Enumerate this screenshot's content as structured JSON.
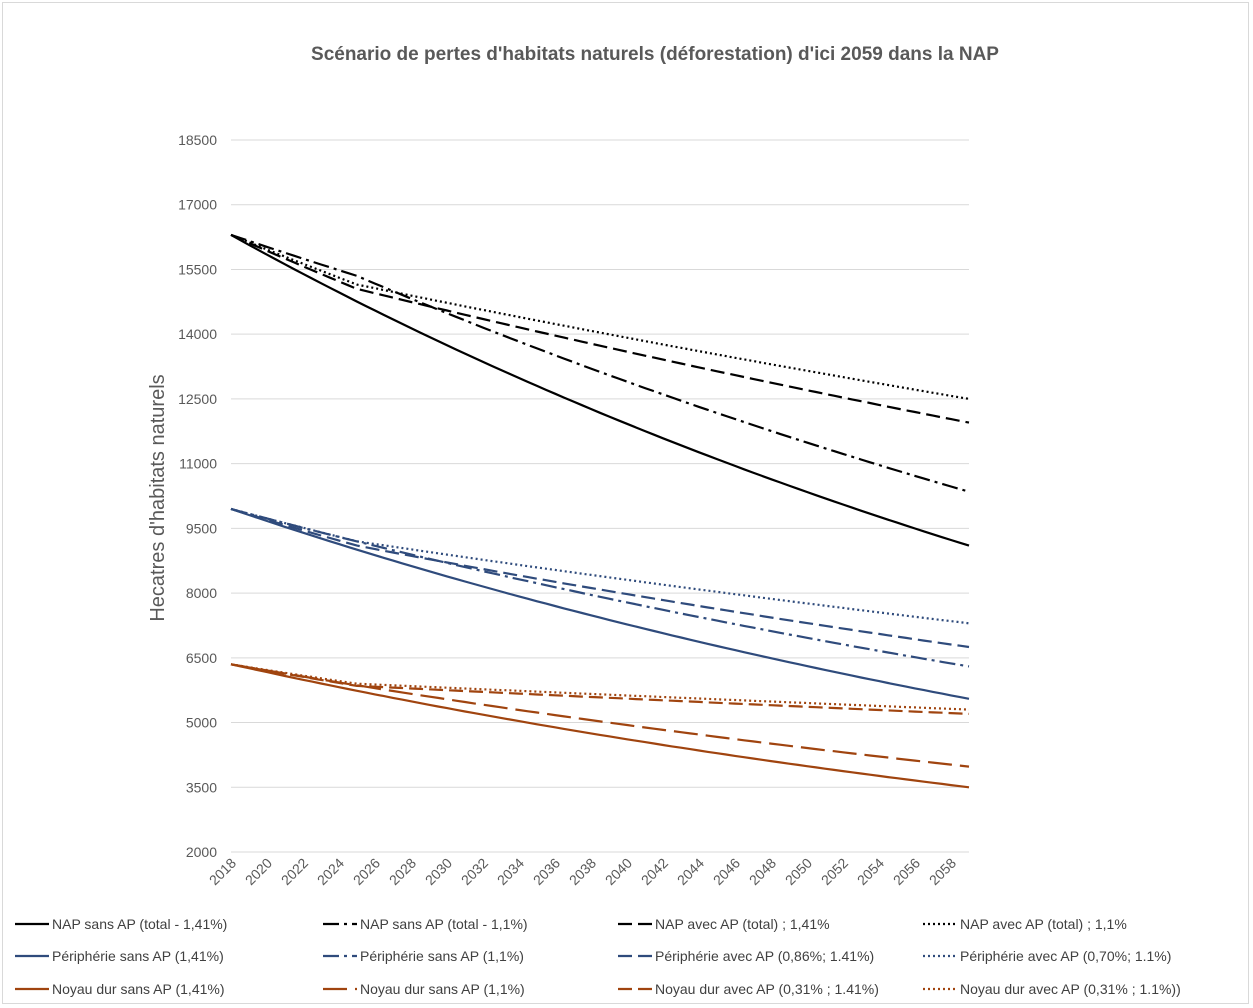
{
  "chart_data": {
    "type": "line",
    "title": "Scénario de pertes d'habitats naturels (déforestation) d'ici 2059 dans la NAP",
    "xlabel": "",
    "ylabel": "Hecatres d'habitats naturels",
    "ylim": [
      2000,
      18500
    ],
    "yticks": [
      "2000",
      "3500",
      "5000",
      "6500",
      "8000",
      "9500",
      "11000",
      "12500",
      "14000",
      "15500",
      "17000",
      "18500"
    ],
    "xlim": [
      2018,
      2059
    ],
    "xticks": [
      "2018",
      "2020",
      "2022",
      "2024",
      "2026",
      "2028",
      "2030",
      "2032",
      "2034",
      "2036",
      "2038",
      "2040",
      "2042",
      "2044",
      "2046",
      "2048",
      "2050",
      "2052",
      "2054",
      "2056",
      "2058"
    ],
    "grid": true,
    "legend_position": "bottom",
    "colors": {
      "black": "#000000",
      "blue": "#2f4b7c",
      "brown": "#a0440f"
    },
    "series": [
      {
        "name": "NAP sans AP (total - 1,41%)",
        "color": "#000000",
        "style": "solid",
        "x": [
          2018,
          2059
        ],
        "y": [
          16300,
          9100
        ],
        "form": "exp"
      },
      {
        "name": "NAP sans AP (total - 1,1%)",
        "color": "#000000",
        "style": "dashdot",
        "x": [
          2018,
          2025,
          2059
        ],
        "y": [
          16300,
          15350,
          10350
        ],
        "form": "exp"
      },
      {
        "name": "NAP avec AP (total) ; 1,41%",
        "color": "#000000",
        "style": "dashed",
        "x": [
          2018,
          2025,
          2059
        ],
        "y": [
          16300,
          15050,
          11950
        ],
        "form": "exp"
      },
      {
        "name": "NAP avec AP (total) ; 1,1%",
        "color": "#000000",
        "style": "dotted",
        "x": [
          2018,
          2025,
          2059
        ],
        "y": [
          16300,
          15150,
          12500
        ],
        "form": "exp"
      },
      {
        "name": "Périphérie sans AP (1,41%)",
        "color": "#2f4b7c",
        "style": "solid",
        "x": [
          2018,
          2059
        ],
        "y": [
          9950,
          5550
        ],
        "form": "exp"
      },
      {
        "name": "Périphérie sans AP (1,1%)",
        "color": "#2f4b7c",
        "style": "dashdot",
        "x": [
          2018,
          2024,
          2059
        ],
        "y": [
          9950,
          9300,
          6300
        ],
        "form": "exp"
      },
      {
        "name": "Périphérie avec AP (0,86%; 1.41%)",
        "color": "#2f4b7c",
        "style": "dashed",
        "x": [
          2018,
          2025,
          2059
        ],
        "y": [
          9950,
          9100,
          6750
        ],
        "form": "exp"
      },
      {
        "name": "Périphérie avec AP (0,70%; 1.1%)",
        "color": "#2f4b7c",
        "style": "dotted",
        "x": [
          2018,
          2025,
          2059
        ],
        "y": [
          9950,
          9200,
          7300
        ],
        "form": "exp"
      },
      {
        "name": "Noyau dur sans AP (1,41%)",
        "color": "#a0440f",
        "style": "solid",
        "x": [
          2018,
          2059
        ],
        "y": [
          6350,
          3500
        ],
        "form": "exp"
      },
      {
        "name": "Noyau dur sans AP (1,1%)",
        "color": "#a0440f",
        "style": "longdash",
        "x": [
          2018,
          2059
        ],
        "y": [
          6350,
          3980
        ],
        "form": "exp"
      },
      {
        "name": "Noyau dur avec AP (0,31% ; 1.41%)",
        "color": "#a0440f",
        "style": "dashed",
        "x": [
          2018,
          2025,
          2059
        ],
        "y": [
          6350,
          5850,
          5200
        ],
        "form": "exp"
      },
      {
        "name": "Noyau dur avec AP (0,31% ; 1.1%))",
        "color": "#a0440f",
        "style": "dotted",
        "x": [
          2018,
          2025,
          2059
        ],
        "y": [
          6350,
          5900,
          5300
        ],
        "form": "exp"
      }
    ]
  }
}
